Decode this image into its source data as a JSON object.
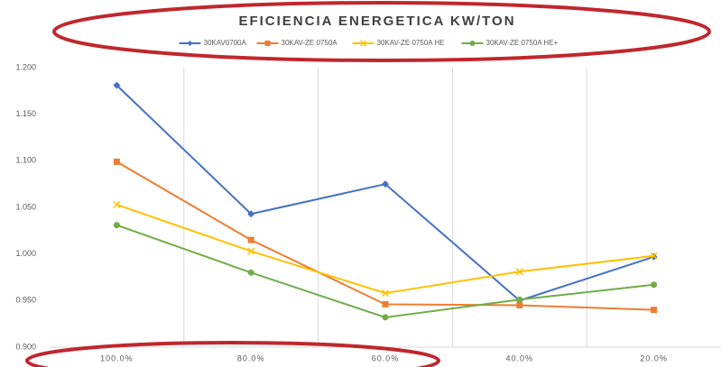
{
  "chart_data": {
    "type": "line",
    "title": "EFICIENCIA ENERGETICA KW/TON",
    "categories": [
      "100.0%",
      "80.0%",
      "60.0%",
      "40.0%",
      "20.0%"
    ],
    "series": [
      {
        "name": "30KAV0700A",
        "color": "#4472c4",
        "marker": "diamond",
        "values": [
          1.181,
          1.043,
          1.075,
          0.95,
          0.997
        ]
      },
      {
        "name": "30KAV-ZE 0750A",
        "color": "#ed7d31",
        "marker": "square",
        "values": [
          1.099,
          1.015,
          0.946,
          0.945,
          0.94
        ]
      },
      {
        "name": "30KAV-ZE 0750A HE",
        "color": "#ffc000",
        "marker": "x",
        "values": [
          1.053,
          1.003,
          0.958,
          0.981,
          0.998
        ]
      },
      {
        "name": "30KAV-ZE 0750A HE+",
        "color": "#70ad47",
        "marker": "circle",
        "values": [
          1.031,
          0.98,
          0.932,
          0.951,
          0.967
        ]
      }
    ],
    "ylim": [
      0.9,
      1.2
    ],
    "yticks": [
      {
        "value": 0.9,
        "label": "0.900"
      },
      {
        "value": 0.95,
        "label": "0.950"
      },
      {
        "value": 1.0,
        "label": "1.000"
      },
      {
        "value": 1.05,
        "label": "1.050"
      },
      {
        "value": 1.1,
        "label": "1.100"
      },
      {
        "value": 1.15,
        "label": "1.150"
      },
      {
        "value": 1.2,
        "label": "1.200"
      }
    ],
    "grid": true,
    "legend": "top"
  }
}
